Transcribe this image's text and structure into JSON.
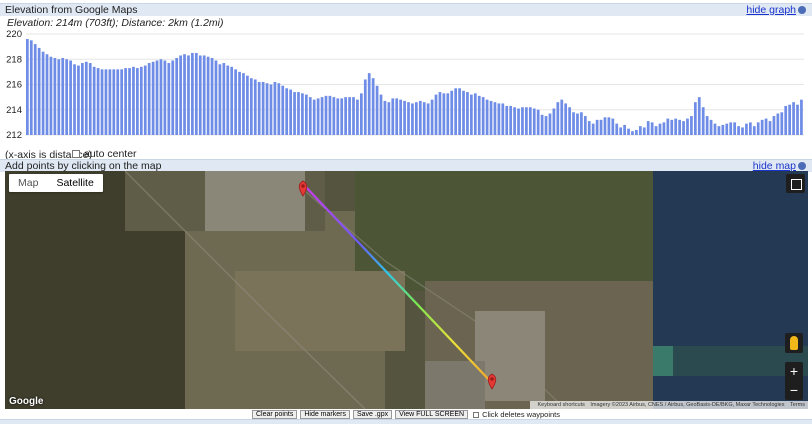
{
  "graph_header": {
    "title": "Elevation from Google Maps",
    "hide_label": "hide graph"
  },
  "elevation_info": "Elevation: 214m (703ft); Distance: 2km (1.2mi)",
  "chart_data": {
    "type": "bar",
    "title": "",
    "xlabel": "",
    "ylabel": "",
    "ylim": [
      212,
      220
    ],
    "yticks": [
      "212",
      "214",
      "216",
      "218",
      "220"
    ],
    "bar_color": "#6f8de6",
    "values": [
      219.6,
      219.5,
      219.2,
      218.9,
      218.6,
      218.4,
      218.2,
      218.1,
      218.0,
      218.1,
      218.0,
      217.9,
      217.6,
      217.5,
      217.7,
      217.8,
      217.7,
      217.4,
      217.3,
      217.2,
      217.2,
      217.2,
      217.2,
      217.2,
      217.2,
      217.3,
      217.3,
      217.4,
      217.3,
      217.4,
      217.5,
      217.7,
      217.8,
      217.9,
      218.0,
      217.9,
      217.7,
      217.9,
      218.1,
      218.3,
      218.4,
      218.3,
      218.5,
      218.5,
      218.3,
      218.3,
      218.2,
      218.1,
      217.9,
      217.6,
      217.7,
      217.5,
      217.4,
      217.2,
      217.0,
      216.9,
      216.7,
      216.5,
      216.4,
      216.2,
      216.2,
      216.1,
      216.0,
      216.2,
      216.1,
      215.9,
      215.7,
      215.6,
      215.4,
      215.4,
      215.3,
      215.2,
      215.0,
      214.8,
      214.9,
      215.0,
      215.1,
      215.1,
      215.0,
      214.9,
      214.9,
      215.0,
      215.0,
      215.0,
      214.8,
      215.3,
      216.4,
      216.9,
      216.5,
      215.9,
      215.2,
      214.7,
      214.6,
      214.9,
      214.9,
      214.8,
      214.7,
      214.6,
      214.5,
      214.6,
      214.7,
      214.6,
      214.5,
      214.8,
      215.2,
      215.4,
      215.3,
      215.3,
      215.5,
      215.7,
      215.7,
      215.5,
      215.4,
      215.2,
      215.3,
      215.1,
      215.0,
      214.8,
      214.7,
      214.6,
      214.5,
      214.5,
      214.3,
      214.3,
      214.2,
      214.1,
      214.2,
      214.2,
      214.2,
      214.1,
      214.0,
      213.6,
      213.5,
      213.7,
      214.1,
      214.6,
      214.8,
      214.5,
      214.2,
      213.8,
      213.7,
      213.8,
      213.5,
      213.1,
      212.9,
      213.2,
      213.2,
      213.4,
      213.4,
      213.3,
      212.9,
      212.6,
      212.8,
      212.5,
      212.3,
      212.4,
      212.7,
      212.6,
      213.1,
      213.0,
      212.7,
      212.9,
      213.0,
      213.3,
      213.2,
      213.3,
      213.2,
      213.1,
      213.3,
      213.5,
      214.6,
      215.0,
      214.2,
      213.5,
      213.2,
      212.9,
      212.7,
      212.8,
      212.9,
      213.0,
      213.0,
      212.7,
      212.6,
      212.9,
      213.0,
      212.7,
      213.0,
      213.2,
      213.3,
      213.1,
      213.5,
      213.7,
      213.8,
      214.3,
      214.4,
      214.6,
      214.4,
      214.8
    ]
  },
  "x_axis_note": "(x-axis is distance)",
  "auto_center_label": "auto center",
  "map_header": {
    "title": "Add points by clicking on the map",
    "hide_label": "hide map"
  },
  "map": {
    "type_buttons": [
      "Map",
      "Satellite"
    ],
    "active_type": "Satellite",
    "zoom_in": "+",
    "zoom_out": "−",
    "google_logo": "Google",
    "attribution": [
      "Keyboard shortcuts",
      "Imagery ©2023 Airbus, CNES / Airbus, GeoBasis-DE/BKG, Maxar Technologies",
      "Terms"
    ]
  },
  "controls": {
    "clear_points": "Clear points",
    "hide_markers": "Hide markers",
    "save_gpx": "Save .gpx",
    "full_screen": "View FULL SCREEN",
    "click_deletes": "Click deletes waypoints"
  }
}
